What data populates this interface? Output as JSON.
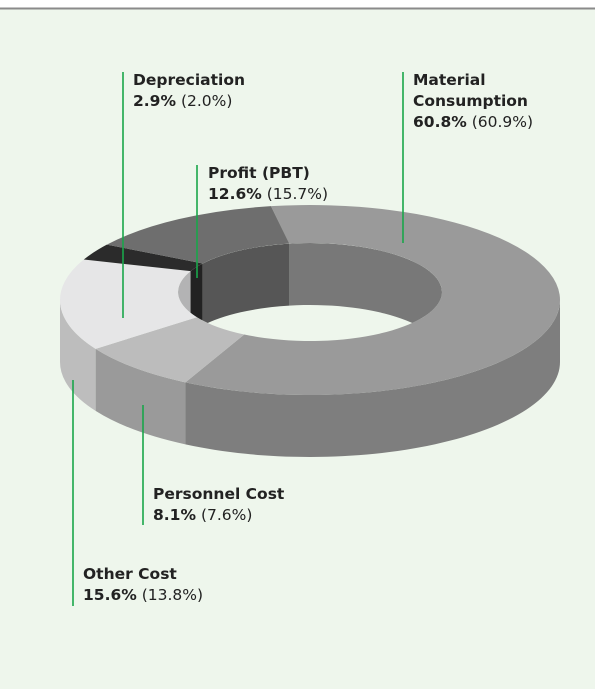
{
  "chart_data": {
    "type": "donut3d",
    "categories": [
      "Material Consumption",
      "Personnel Cost",
      "Other Cost",
      "Depreciation",
      "Profit (PBT)"
    ],
    "series": [
      {
        "values": [
          60.8,
          8.1,
          15.6,
          2.9,
          12.6
        ],
        "value_labels": [
          "60.8%",
          "8.1%",
          "15.6%",
          "2.9%",
          "12.6%"
        ],
        "colors": [
          "#9a9a9a",
          "#bcbcbc",
          "#e6e6e7",
          "#2b2b2b",
          "#6e6e6e"
        ]
      },
      {
        "values": [
          60.9,
          7.6,
          13.8,
          2.0,
          15.7
        ],
        "value_labels": [
          "(60.9%)",
          "(7.6%)",
          "(13.8%)",
          "(2.0%)",
          "(15.7%)"
        ]
      }
    ]
  }
}
